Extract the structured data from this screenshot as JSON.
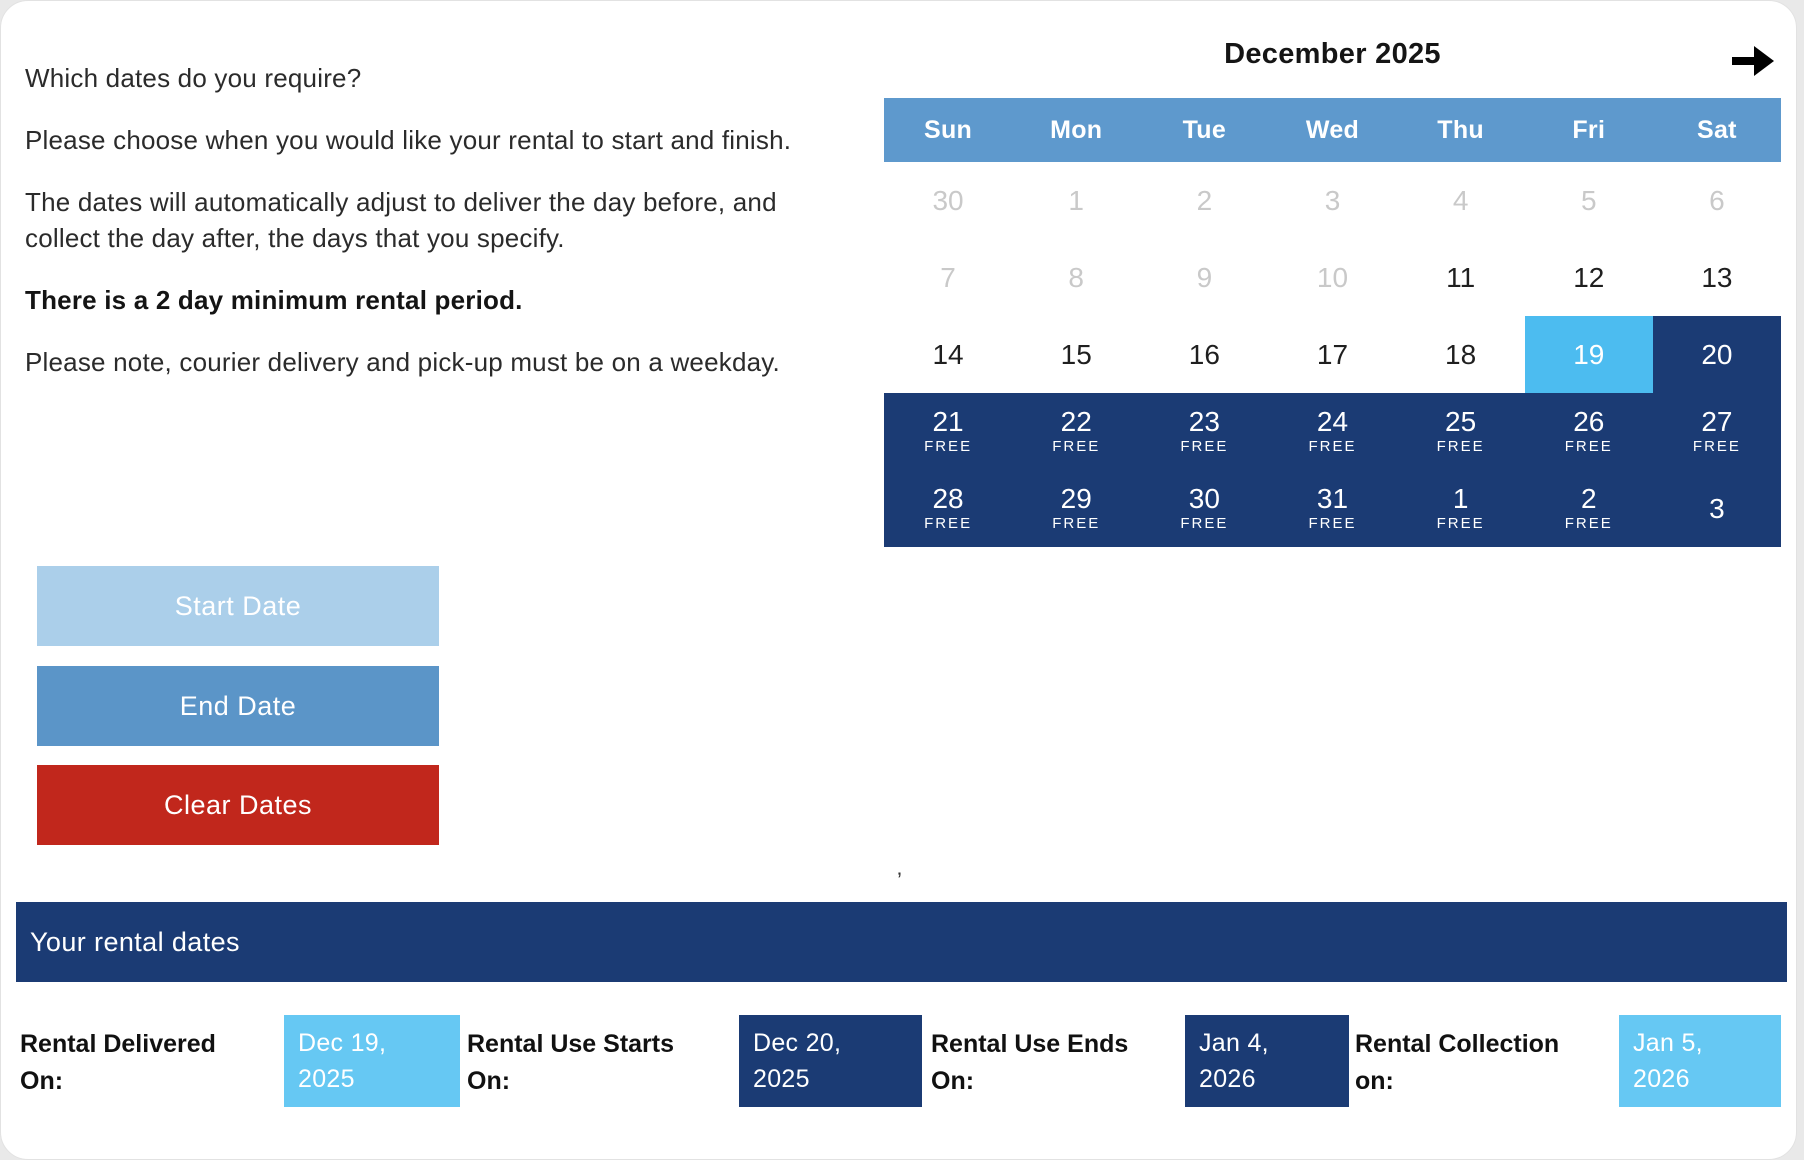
{
  "colors": {
    "header_blue": "#5e99cd",
    "selected_light_blue": "#4cbcf0",
    "navy": "#1b3b74",
    "box_light_blue": "#66c8f3",
    "start_button_blue": "#abcfea",
    "end_button_blue": "#5b95c8",
    "clear_button_red": "#c1271c",
    "disabled_day_gray": "#c9c9c9"
  },
  "intro": {
    "p1": "Which dates do you require?",
    "p2": "Please choose when you would like your rental to start and finish.",
    "p3": "The dates will automatically adjust to deliver the day before, and collect the day after, the days that you specify.",
    "p4": "There is a 2 day minimum rental period.",
    "p5": "Please note, courier delivery and pick-up must be on a weekday."
  },
  "buttons": {
    "start": "Start Date",
    "end": "End Date",
    "clear": "Clear Dates"
  },
  "calendar": {
    "title": "December 2025",
    "next_arrow": "→",
    "free_label": "FREE",
    "weekdays": [
      "Sun",
      "Mon",
      "Tue",
      "Wed",
      "Thu",
      "Fri",
      "Sat"
    ],
    "weeks": [
      [
        {
          "day": "30",
          "state": "muted"
        },
        {
          "day": "1",
          "state": "muted"
        },
        {
          "day": "2",
          "state": "muted"
        },
        {
          "day": "3",
          "state": "muted"
        },
        {
          "day": "4",
          "state": "muted"
        },
        {
          "day": "5",
          "state": "muted"
        },
        {
          "day": "6",
          "state": "muted"
        }
      ],
      [
        {
          "day": "7",
          "state": "muted"
        },
        {
          "day": "8",
          "state": "muted"
        },
        {
          "day": "9",
          "state": "muted"
        },
        {
          "day": "10",
          "state": "muted"
        },
        {
          "day": "11",
          "state": "normal"
        },
        {
          "day": "12",
          "state": "normal"
        },
        {
          "day": "13",
          "state": "normal"
        }
      ],
      [
        {
          "day": "14",
          "state": "normal"
        },
        {
          "day": "15",
          "state": "normal"
        },
        {
          "day": "16",
          "state": "normal"
        },
        {
          "day": "17",
          "state": "normal"
        },
        {
          "day": "18",
          "state": "normal"
        },
        {
          "day": "19",
          "state": "start"
        },
        {
          "day": "20",
          "state": "range"
        }
      ],
      [
        {
          "day": "21",
          "state": "range",
          "free": true
        },
        {
          "day": "22",
          "state": "range",
          "free": true
        },
        {
          "day": "23",
          "state": "range",
          "free": true
        },
        {
          "day": "24",
          "state": "range",
          "free": true
        },
        {
          "day": "25",
          "state": "range",
          "free": true
        },
        {
          "day": "26",
          "state": "range",
          "free": true
        },
        {
          "day": "27",
          "state": "range",
          "free": true
        }
      ],
      [
        {
          "day": "28",
          "state": "range",
          "free": true
        },
        {
          "day": "29",
          "state": "range",
          "free": true
        },
        {
          "day": "30",
          "state": "range",
          "free": true
        },
        {
          "day": "31",
          "state": "range",
          "free": true
        },
        {
          "day": "1",
          "state": "range",
          "free": true
        },
        {
          "day": "2",
          "state": "range",
          "free": true
        },
        {
          "day": "3",
          "state": "range"
        }
      ]
    ]
  },
  "stray_mark": "’",
  "rental_bar": {
    "title": "Your rental dates"
  },
  "rental_details": [
    {
      "label": "Rental Delivered\nOn:",
      "value": "Dec 19,\n2025",
      "variant": "light"
    },
    {
      "label": "Rental Use Starts\nOn:",
      "value": "Dec 20,\n2025",
      "variant": "dark"
    },
    {
      "label": "Rental Use Ends\nOn:",
      "value": "Jan 4,\n2026",
      "variant": "dark"
    },
    {
      "label": "Rental Collection\non:",
      "value": "Jan 5,\n2026",
      "variant": "light"
    }
  ]
}
